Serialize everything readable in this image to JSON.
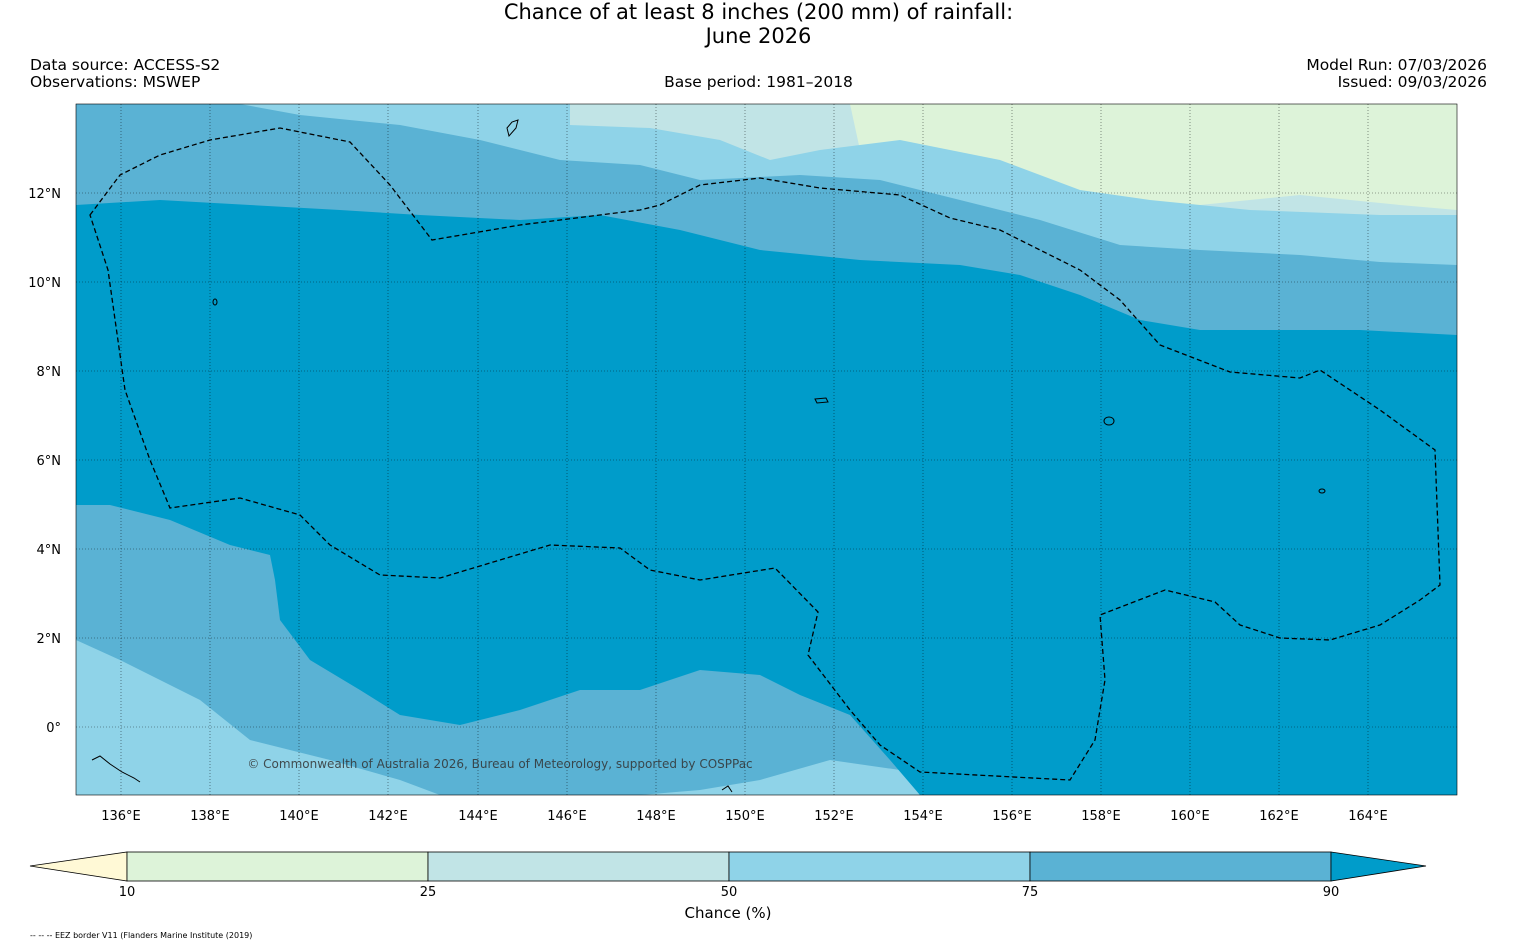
{
  "title": {
    "line1": "Chance of at least 8 inches (200  mm) of rainfall:",
    "line2": "June 2026"
  },
  "header": {
    "data_source": "Data source: ACCESS-S2",
    "observations": "Observations: MSWEP",
    "base_period": "Base period: 1981–2018",
    "model_run": "Model Run: 07/03/2026",
    "issued": "Issued: 09/03/2026"
  },
  "map": {
    "lat_labels": [
      "12°N",
      "10°N",
      "8°N",
      "6°N",
      "4°N",
      "2°N",
      "0°"
    ],
    "lon_labels": [
      "136°E",
      "138°E",
      "140°E",
      "142°E",
      "144°E",
      "146°E",
      "148°E",
      "150°E",
      "152°E",
      "154°E",
      "156°E",
      "158°E",
      "160°E",
      "162°E",
      "164°E"
    ],
    "copyright": "© Commonwealth of Australia 2026, Bureau of Meteorology, supported by COSPPac"
  },
  "colorbar": {
    "ticks": [
      "10",
      "25",
      "50",
      "75",
      "90"
    ],
    "label": "Chance (%)",
    "colors": [
      "#fff9d6",
      "#ddf3d9",
      "#c1e4e6",
      "#8fd3e8",
      "#5ab2d4",
      "#009cca"
    ]
  },
  "footer": {
    "eez_note": "-- -- -- EEZ border V11 (Flanders Marine Institute (2019)"
  }
}
